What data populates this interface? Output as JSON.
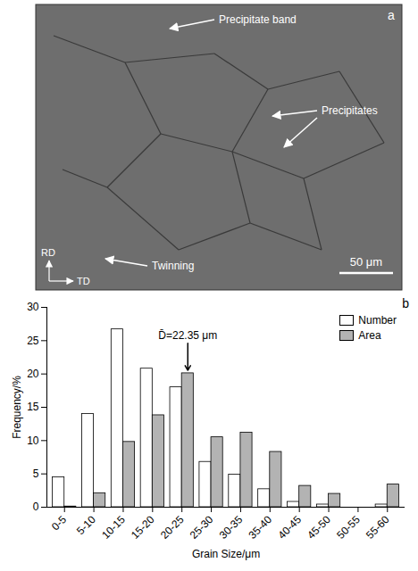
{
  "micrograph": {
    "panel_label": "a",
    "annotations": [
      "Precipitate band",
      "Precipitates",
      "Twinning"
    ],
    "scale_bar": "50 μm",
    "axes": [
      "RD",
      "TD"
    ]
  },
  "chart_data": {
    "type": "bar",
    "panel_label": "b",
    "x_label": "Grain Size/μm",
    "y_label": "Frequency/%",
    "categories": [
      "0-5",
      "5-10",
      "10-15",
      "15-20",
      "20-25",
      "25-30",
      "30-35",
      "35-40",
      "40-45",
      "45-50",
      "50-55",
      "55-60"
    ],
    "series": [
      {
        "name": "Number",
        "color": "#ffffff",
        "values": [
          4.5,
          14,
          26.7,
          20.8,
          18,
          6.8,
          4.9,
          2.7,
          0.8,
          0.4,
          0,
          0.4
        ]
      },
      {
        "name": "Area",
        "color": "#b3b3b3",
        "values": [
          0.1,
          2.1,
          9.8,
          13.8,
          20.1,
          10.5,
          11.2,
          8.3,
          3.2,
          2,
          0,
          3.4
        ]
      }
    ],
    "annotation": {
      "text": "D̄=22.35 μm",
      "category": "20-25"
    },
    "ylim": [
      0,
      30
    ],
    "yticks": [
      0,
      5,
      10,
      15,
      20,
      25,
      30
    ],
    "legend": "top-right",
    "grid": false
  }
}
